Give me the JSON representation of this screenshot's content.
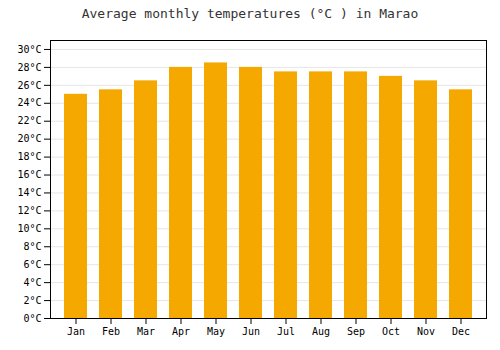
{
  "chart_data": {
    "type": "bar",
    "title": "Average monthly temperatures (°C ) in Marao",
    "categories": [
      "Jan",
      "Feb",
      "Mar",
      "Apr",
      "May",
      "Jun",
      "Jul",
      "Aug",
      "Sep",
      "Oct",
      "Nov",
      "Dec"
    ],
    "values": [
      25.0,
      25.5,
      26.5,
      28.0,
      28.5,
      28.0,
      27.5,
      27.5,
      27.5,
      27.0,
      26.5,
      25.5
    ],
    "color": "#F5A800",
    "ylim": [
      0,
      31
    ],
    "yticks": [
      {
        "value": 0,
        "label": "0°C"
      },
      {
        "value": 2,
        "label": "2°C"
      },
      {
        "value": 4,
        "label": "4°C"
      },
      {
        "value": 6,
        "label": "6°C"
      },
      {
        "value": 8,
        "label": "8°C"
      },
      {
        "value": 10,
        "label": "10°C"
      },
      {
        "value": 12,
        "label": "12°C"
      },
      {
        "value": 14,
        "label": "14°C"
      },
      {
        "value": 16,
        "label": "16°C"
      },
      {
        "value": 18,
        "label": "18°C"
      },
      {
        "value": 20,
        "label": "20°C"
      },
      {
        "value": 22,
        "label": "22°C"
      },
      {
        "value": 24,
        "label": "24°C"
      },
      {
        "value": 26,
        "label": "26°C"
      },
      {
        "value": 28,
        "label": "28°C"
      },
      {
        "value": 30,
        "label": "30°C"
      }
    ],
    "grid": true
  }
}
